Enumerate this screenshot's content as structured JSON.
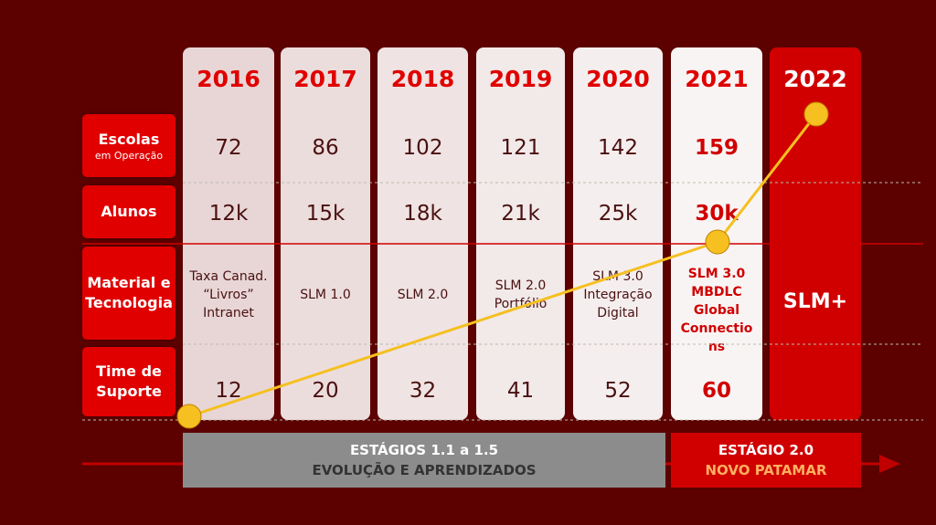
{
  "years": [
    "2016",
    "2017",
    "2018",
    "2019",
    "2020",
    "2021",
    "2022"
  ],
  "rows": [
    {
      "label": "Escolas",
      "sublabel": "em Operação",
      "cells": [
        [
          "72"
        ],
        [
          "86"
        ],
        [
          "102"
        ],
        [
          "121"
        ],
        [
          "142"
        ],
        [
          "159"
        ]
      ]
    },
    {
      "label": "Alunos",
      "cells": [
        [
          "12k"
        ],
        [
          "15k"
        ],
        [
          "18k"
        ],
        [
          "21k"
        ],
        [
          "25k"
        ],
        [
          "30k"
        ]
      ]
    },
    {
      "label": "Material e Tecnologia",
      "cells": [
        [
          "Taxa Canad.",
          "“Livros”",
          "Intranet"
        ],
        [
          "SLM 1.0"
        ],
        [
          "SLM 2.0"
        ],
        [
          "SLM 2.0",
          "Portfólio"
        ],
        [
          "SLM 3.0",
          "Integração",
          "Digital"
        ],
        [
          "SLM 3.0",
          "MBDLC",
          "Global",
          "Connectio",
          "ns"
        ]
      ]
    },
    {
      "label": "Time de Suporte",
      "cells": [
        [
          "12"
        ],
        [
          "20"
        ],
        [
          "32"
        ],
        [
          "41"
        ],
        [
          "52"
        ],
        [
          "60"
        ]
      ]
    }
  ],
  "highlight": "SLM+",
  "stages": [
    {
      "title": "ESTÁGIOS 1.1 a 1.5",
      "subtitle": "EVOLUÇÃO E APRENDIZADOS"
    },
    {
      "title": "ESTÁGIO 2.0",
      "subtitle": "NOVO PATAMAR"
    }
  ]
}
